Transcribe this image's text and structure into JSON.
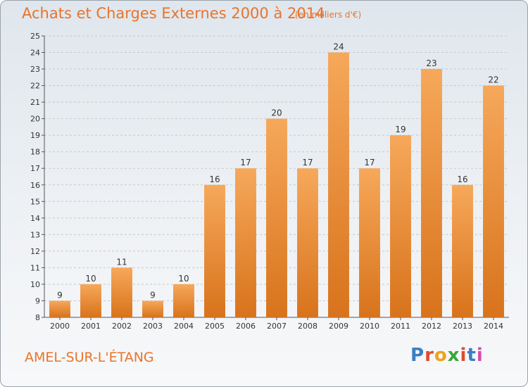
{
  "header": {
    "title": "Achats et Charges Externes 2000 à 2014",
    "unit": "(en milliers d'€)"
  },
  "footer": {
    "commune": "AMEL-SUR-L'ÉTANG",
    "logo_letters": [
      "P",
      "r",
      "o",
      "x",
      "i",
      "t",
      "i"
    ],
    "logo_colors": [
      "#3a7fc4",
      "#e14b2c",
      "#f0a21a",
      "#3aa63a",
      "#e14b2c",
      "#3a7fc4",
      "#d44cae"
    ]
  },
  "colors": {
    "bar": "#f08c28",
    "bar_light": "#f6a85a",
    "bar_dark": "#d8731c",
    "grid": "#c3c9cf",
    "text": "#333333"
  },
  "chart_data": {
    "type": "bar",
    "title": "Achats et Charges Externes 2000 à 2014",
    "xlabel": "",
    "ylabel": "",
    "categories": [
      "2000",
      "2001",
      "2002",
      "2003",
      "2004",
      "2005",
      "2006",
      "2007",
      "2008",
      "2009",
      "2010",
      "2011",
      "2012",
      "2013",
      "2014"
    ],
    "values": [
      9,
      10,
      11,
      9,
      10,
      16,
      17,
      20,
      17,
      24,
      17,
      19,
      23,
      16,
      22
    ],
    "ylim": [
      8,
      25
    ],
    "yticks": [
      8,
      9,
      10,
      11,
      12,
      13,
      14,
      15,
      16,
      17,
      18,
      19,
      20,
      21,
      22,
      23,
      24,
      25
    ],
    "grid": true,
    "legend": "none"
  }
}
